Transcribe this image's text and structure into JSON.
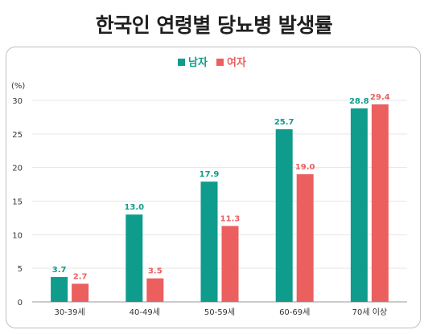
{
  "title": "한국인 연령별 당뇨병 발생률",
  "chart_data": {
    "type": "bar",
    "ylabel": "(%)",
    "ylim": [
      0,
      30
    ],
    "yticks": [
      0,
      5,
      10,
      15,
      20,
      25,
      30
    ],
    "grid": true,
    "legend_position": "top-center",
    "categories": [
      "30-39세",
      "40-49세",
      "50-59세",
      "60-69세",
      "70세 이상"
    ],
    "series": [
      {
        "name": "남자",
        "color": "#0f9c8c",
        "values": [
          3.7,
          13.0,
          17.9,
          25.7,
          28.8
        ],
        "labels": [
          "3.7",
          "13.0",
          "17.9",
          "25.7",
          "28.8"
        ]
      },
      {
        "name": "여자",
        "color": "#ec5f5f",
        "values": [
          2.7,
          3.5,
          11.3,
          19.0,
          29.4
        ],
        "labels": [
          "2.7",
          "3.5",
          "11.3",
          "19.0",
          "29.4"
        ]
      }
    ]
  }
}
